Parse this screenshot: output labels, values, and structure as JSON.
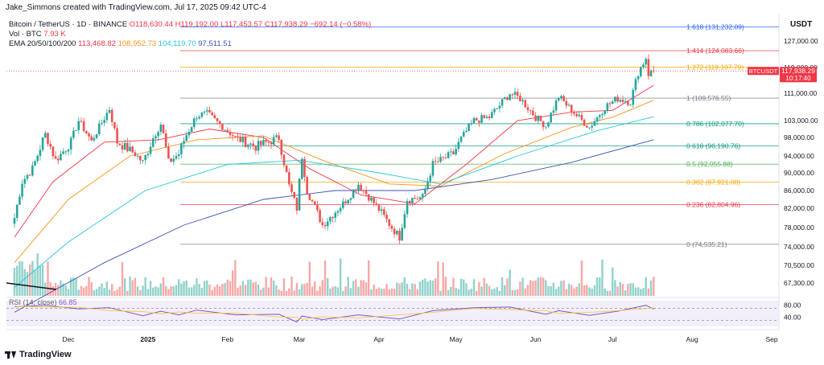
{
  "header": {
    "credit": "Jake_Simmons created with TradingView.com, Jul 17, 2025 09:42 UTC-4",
    "symbol": "Bitcoin / TetherUS · 1D · BINANCE",
    "ohlc": "O118,630.44 H119,192.00 L117,453.57 C117,938.29 −692.14 (−0.58%)",
    "volume_label": "Vol · BTC",
    "volume_value": "7.93 K",
    "ema_label": "EMA 20/50/100/200",
    "ema_values": [
      {
        "value": "113,468.82",
        "color": "#f23645"
      },
      {
        "value": "108,952.73",
        "color": "#f7931a"
      },
      {
        "value": "104,119.70",
        "color": "#26c6da"
      },
      {
        "value": "97,511.51",
        "color": "#3f51b5"
      }
    ],
    "currency": "USDT"
  },
  "price_tag": {
    "symbol": "BTCUSDT",
    "price": "117,938.29",
    "countdown": "10:17:40",
    "color": "#f23645"
  },
  "rsi_legend": {
    "label": "RSI (14, close)",
    "value": "66.85"
  },
  "logo": {
    "text": "TradingView"
  },
  "chart_data": {
    "type": "candlestick",
    "title": "Bitcoin / TetherUS · 1D · BINANCE",
    "price_axis": {
      "ticks": [
        "127,000.00",
        "119,000.00",
        "111,000.00",
        "103,000.00",
        "98,000.00",
        "94,000.00",
        "90,000.00",
        "86,000.00",
        "82,000.00",
        "78,000.00",
        "74,000.00",
        "70,500.00",
        "67,300.00"
      ],
      "tick_values": [
        127000,
        119000,
        111000,
        103000,
        98000,
        94000,
        90000,
        86000,
        82000,
        78000,
        74000,
        70500,
        67300
      ]
    },
    "time_axis": {
      "labels": [
        "Dec",
        "2025",
        "Feb",
        "Mar",
        "Apr",
        "May",
        "Jun",
        "Jul",
        "Aug",
        "Sep"
      ],
      "dates": [
        "2024-12-01",
        "2025-01-01",
        "2025-02-01",
        "2025-03-01",
        "2025-04-01",
        "2025-05-01",
        "2025-06-01",
        "2025-07-01",
        "2025-08-01",
        "2025-09-01"
      ]
    },
    "fibonacci": [
      {
        "ratio": "1.618",
        "price": 131232.09,
        "label": "1.618 (131,232.09)",
        "color": "#2962ff"
      },
      {
        "ratio": "1.414",
        "price": 124083.66,
        "label": "1.414 (124,083.66)",
        "color": "#f23645"
      },
      {
        "ratio": "1.272",
        "price": 119107.79,
        "label": "1.272 (119,107.79)",
        "color": "#f7a600"
      },
      {
        "ratio": "1",
        "price": 109576.55,
        "label": "1 (109,576.55)",
        "color": "#787b86"
      },
      {
        "ratio": "0.786",
        "price": 102077.7,
        "label": "0.786 (102,077.70)",
        "color": "#089981"
      },
      {
        "ratio": "0.618",
        "price": 96190.76,
        "label": "0.618 (96,190.76)",
        "color": "#089981"
      },
      {
        "ratio": "0.5",
        "price": 92055.88,
        "label": "0.5 (92,055.88)",
        "color": "#4caf50"
      },
      {
        "ratio": "0.382",
        "price": 87921.0,
        "label": "0.382 (87,921.00)",
        "color": "#f7a600"
      },
      {
        "ratio": "0.236",
        "price": 82804.96,
        "label": "0.236 (82,804.96)",
        "color": "#f23645"
      },
      {
        "ratio": "0",
        "price": 74535.21,
        "label": "0 (74,535.21)",
        "color": "#787b86"
      }
    ],
    "last_close": 117938.29,
    "price_path": [
      [
        "2024-11-10",
        80000
      ],
      [
        "2024-11-13",
        88000
      ],
      [
        "2024-11-17",
        91000
      ],
      [
        "2024-11-22",
        99000
      ],
      [
        "2024-11-26",
        93000
      ],
      [
        "2024-12-02",
        97000
      ],
      [
        "2024-12-05",
        103000
      ],
      [
        "2024-12-10",
        97000
      ],
      [
        "2024-12-17",
        106500
      ],
      [
        "2024-12-20",
        97000
      ],
      [
        "2024-12-27",
        94500
      ],
      [
        "2024-12-30",
        92500
      ],
      [
        "2025-01-06",
        102000
      ],
      [
        "2025-01-09",
        92500
      ],
      [
        "2025-01-13",
        94500
      ],
      [
        "2025-01-20",
        104500
      ],
      [
        "2025-01-24",
        105000
      ],
      [
        "2025-02-01",
        100000
      ],
      [
        "2025-02-04",
        98000
      ],
      [
        "2025-02-12",
        96000
      ],
      [
        "2025-02-21",
        98000
      ],
      [
        "2025-02-25",
        87000
      ],
      [
        "2025-02-28",
        82000
      ],
      [
        "2025-03-02",
        94000
      ],
      [
        "2025-03-04",
        86000
      ],
      [
        "2025-03-10",
        78500
      ],
      [
        "2025-03-18",
        83000
      ],
      [
        "2025-03-24",
        87500
      ],
      [
        "2025-03-31",
        82500
      ],
      [
        "2025-04-06",
        78000
      ],
      [
        "2025-04-09",
        76000
      ],
      [
        "2025-04-12",
        84000
      ],
      [
        "2025-04-18",
        84500
      ],
      [
        "2025-04-22",
        92000
      ],
      [
        "2025-04-30",
        94500
      ],
      [
        "2025-05-08",
        103000
      ],
      [
        "2025-05-14",
        104000
      ],
      [
        "2025-05-22",
        111000
      ],
      [
        "2025-05-26",
        109500
      ],
      [
        "2025-06-01",
        104000
      ],
      [
        "2025-06-05",
        101500
      ],
      [
        "2025-06-10",
        110000
      ],
      [
        "2025-06-17",
        104500
      ],
      [
        "2025-06-22",
        101000
      ],
      [
        "2025-06-28",
        107000
      ],
      [
        "2025-07-03",
        109500
      ],
      [
        "2025-07-08",
        108500
      ],
      [
        "2025-07-11",
        117500
      ],
      [
        "2025-07-14",
        122000
      ],
      [
        "2025-07-15",
        117000
      ],
      [
        "2025-07-17",
        117938
      ]
    ],
    "ema_series": [
      {
        "name": "EMA 20",
        "color": "#f23645",
        "points": [
          [
            "2024-11-10",
            76000
          ],
          [
            "2024-11-25",
            88000
          ],
          [
            "2024-12-15",
            97000
          ],
          [
            "2025-01-05",
            97500
          ],
          [
            "2025-01-25",
            100500
          ],
          [
            "2025-02-15",
            98000
          ],
          [
            "2025-03-05",
            91000
          ],
          [
            "2025-03-25",
            85000
          ],
          [
            "2025-04-15",
            83000
          ],
          [
            "2025-05-05",
            92000
          ],
          [
            "2025-05-25",
            103000
          ],
          [
            "2025-06-15",
            105500
          ],
          [
            "2025-07-01",
            106000
          ],
          [
            "2025-07-17",
            113469
          ]
        ]
      },
      {
        "name": "EMA 50",
        "color": "#f7931a",
        "points": [
          [
            "2024-11-10",
            71000
          ],
          [
            "2024-12-01",
            84000
          ],
          [
            "2024-12-25",
            94000
          ],
          [
            "2025-01-20",
            97500
          ],
          [
            "2025-02-15",
            98500
          ],
          [
            "2025-03-10",
            93000
          ],
          [
            "2025-04-05",
            87500
          ],
          [
            "2025-04-25",
            87000
          ],
          [
            "2025-05-20",
            94500
          ],
          [
            "2025-06-15",
            101000
          ],
          [
            "2025-07-01",
            104000
          ],
          [
            "2025-07-17",
            108953
          ]
        ]
      },
      {
        "name": "EMA 100",
        "color": "#26c6da",
        "points": [
          [
            "2024-11-10",
            66500
          ],
          [
            "2024-12-01",
            75000
          ],
          [
            "2024-12-31",
            86000
          ],
          [
            "2025-02-01",
            92000
          ],
          [
            "2025-03-01",
            93000
          ],
          [
            "2025-04-01",
            90000
          ],
          [
            "2025-04-25",
            87500
          ],
          [
            "2025-05-25",
            94000
          ],
          [
            "2025-06-25",
            100000
          ],
          [
            "2025-07-17",
            104120
          ]
        ]
      },
      {
        "name": "EMA 200",
        "color": "#3f51b5",
        "points": [
          [
            "2024-11-10",
            62000
          ],
          [
            "2024-12-15",
            71000
          ],
          [
            "2025-01-15",
            78500
          ],
          [
            "2025-02-15",
            84000
          ],
          [
            "2025-03-15",
            86000
          ],
          [
            "2025-04-15",
            86000
          ],
          [
            "2025-05-15",
            88500
          ],
          [
            "2025-06-15",
            92500
          ],
          [
            "2025-07-17",
            97512
          ]
        ]
      }
    ],
    "rsi": {
      "ticks": [
        "80.00",
        "40.00"
      ],
      "tick_values": [
        80,
        40
      ],
      "upper": 70,
      "lower": 30,
      "value": 66.85,
      "path": [
        [
          "2024-11-10",
          75
        ],
        [
          "2024-11-22",
          80
        ],
        [
          "2024-12-05",
          68
        ],
        [
          "2024-12-17",
          72
        ],
        [
          "2024-12-30",
          45
        ],
        [
          "2025-01-06",
          60
        ],
        [
          "2025-01-13",
          48
        ],
        [
          "2025-01-20",
          64
        ],
        [
          "2025-02-04",
          48
        ],
        [
          "2025-02-21",
          50
        ],
        [
          "2025-02-28",
          24
        ],
        [
          "2025-03-02",
          44
        ],
        [
          "2025-03-10",
          32
        ],
        [
          "2025-03-24",
          48
        ],
        [
          "2025-04-09",
          34
        ],
        [
          "2025-04-22",
          62
        ],
        [
          "2025-05-08",
          72
        ],
        [
          "2025-05-22",
          74
        ],
        [
          "2025-06-05",
          50
        ],
        [
          "2025-06-10",
          62
        ],
        [
          "2025-06-22",
          46
        ],
        [
          "2025-07-03",
          60
        ],
        [
          "2025-07-14",
          80
        ],
        [
          "2025-07-17",
          66.85
        ]
      ]
    }
  }
}
